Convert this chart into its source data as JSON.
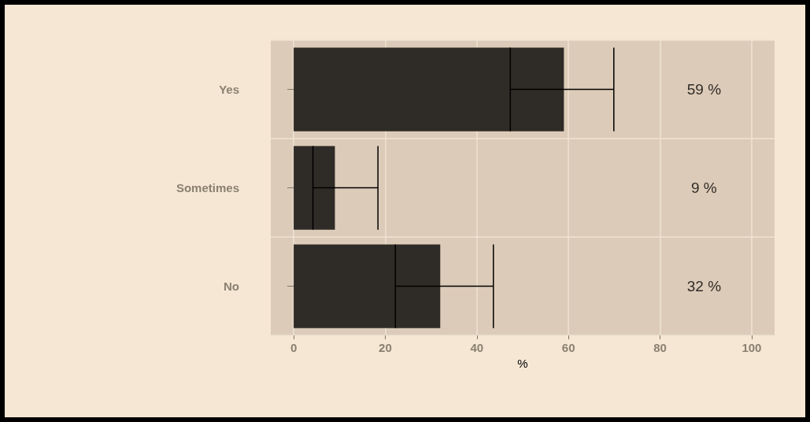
{
  "chart_data": {
    "type": "bar",
    "orientation": "horizontal",
    "xlabel": "%",
    "categories": [
      "Yes",
      "Sometimes",
      "No"
    ],
    "values": [
      59,
      9,
      32
    ],
    "color": "#2f2b26",
    "errors": [
      [
        47.3,
        69.9
      ],
      [
        4.2,
        18.4
      ],
      [
        22.2,
        43.6
      ]
    ],
    "xlim": [
      -5,
      105
    ],
    "xticks": [
      0,
      20,
      40,
      60,
      80,
      100
    ],
    "grid": true,
    "value_labels": [
      "59 %",
      "9 %",
      "32 %"
    ]
  }
}
